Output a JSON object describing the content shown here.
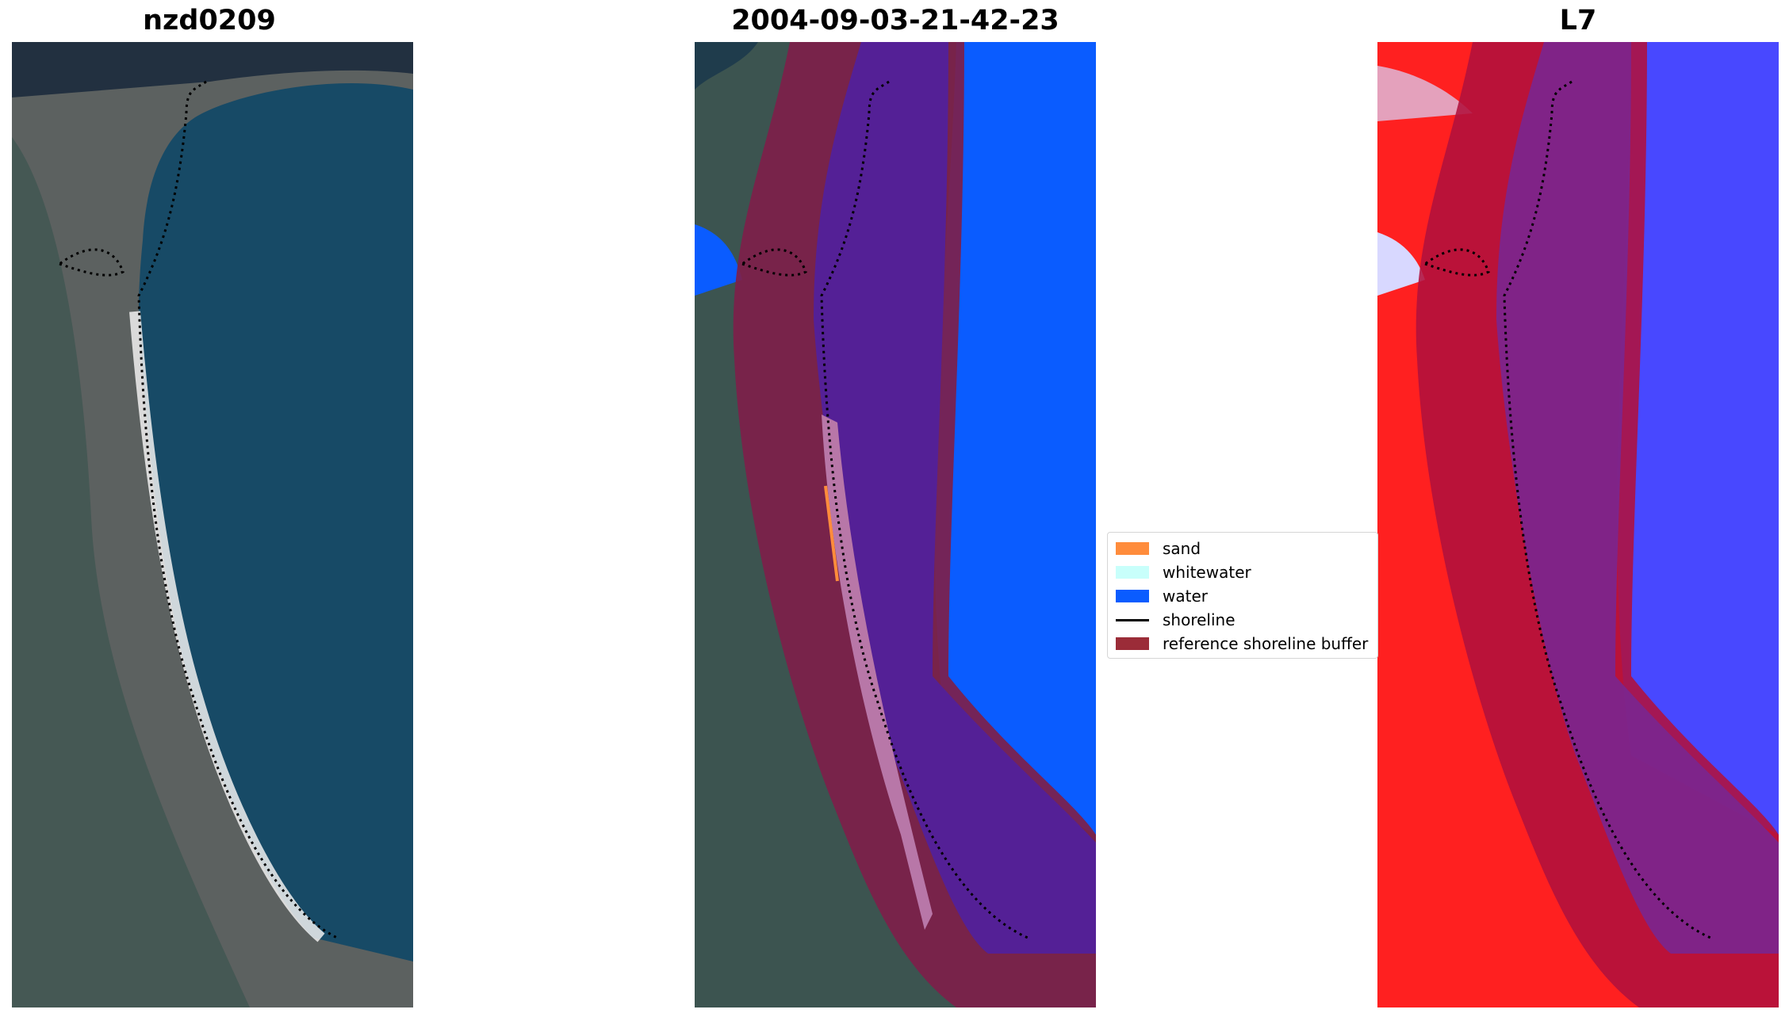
{
  "panels": [
    {
      "title": "nzd0209",
      "kind": "rgb-satellite-image"
    },
    {
      "title": "2004-09-03-21-42-23",
      "kind": "classified-overlay"
    },
    {
      "title": "L7",
      "kind": "mndwi-overlay"
    }
  ],
  "legend": {
    "items": [
      {
        "label": "sand",
        "color": "#ff8c3c",
        "shape": "patch"
      },
      {
        "label": "whitewater",
        "color": "#c8fffb",
        "shape": "patch"
      },
      {
        "label": "water",
        "color": "#0a5cff",
        "shape": "patch"
      },
      {
        "label": "shoreline",
        "color": "#000000",
        "shape": "line"
      },
      {
        "label": "reference shoreline buffer",
        "color": "#9b2c38",
        "shape": "patch"
      }
    ]
  },
  "colors": {
    "land": "#3c5450",
    "sea": "#174a66",
    "water_class": "#0a5cff",
    "buffer": "#7e1f4a",
    "sand_class": "#b877a8",
    "index_land": "#ff2020",
    "index_water": "#4848ff",
    "shoreline": "#000000"
  }
}
